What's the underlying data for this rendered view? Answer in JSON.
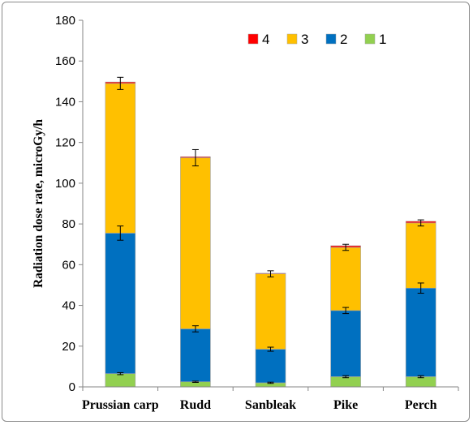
{
  "chart_data": {
    "type": "bar",
    "stacked": true,
    "title": "",
    "xlabel": "",
    "ylabel": "Radiation dose rate, microGy/h",
    "ylim": [
      0,
      180
    ],
    "yticks": [
      0,
      20,
      40,
      60,
      80,
      100,
      120,
      140,
      160,
      180
    ],
    "grid": false,
    "legend_position": "top-right",
    "categories": [
      "Prussian carp",
      "Rudd",
      "Sanbleak",
      "Pike",
      "Perch"
    ],
    "series": [
      {
        "name": "1",
        "color": "#92D050",
        "values": [
          6.5,
          2.5,
          2.0,
          5.0,
          5.0
        ],
        "errors": [
          0.5,
          0.3,
          0.3,
          0.5,
          0.5
        ]
      },
      {
        "name": "2",
        "color": "#0070C0",
        "values": [
          69.0,
          26.0,
          16.5,
          32.5,
          43.5
        ],
        "errors": [
          3.5,
          1.5,
          1.0,
          1.5,
          2.5
        ]
      },
      {
        "name": "3",
        "color": "#FFC000",
        "values": [
          73.5,
          84.0,
          37.0,
          31.0,
          32.0
        ],
        "errors": [
          3.0,
          4.0,
          1.5,
          1.5,
          1.5
        ]
      },
      {
        "name": "4",
        "color": "#FF0000",
        "values": [
          0.7,
          0.5,
          0.3,
          0.8,
          0.8
        ],
        "errors": [
          0,
          0,
          0,
          0,
          0
        ]
      }
    ]
  }
}
